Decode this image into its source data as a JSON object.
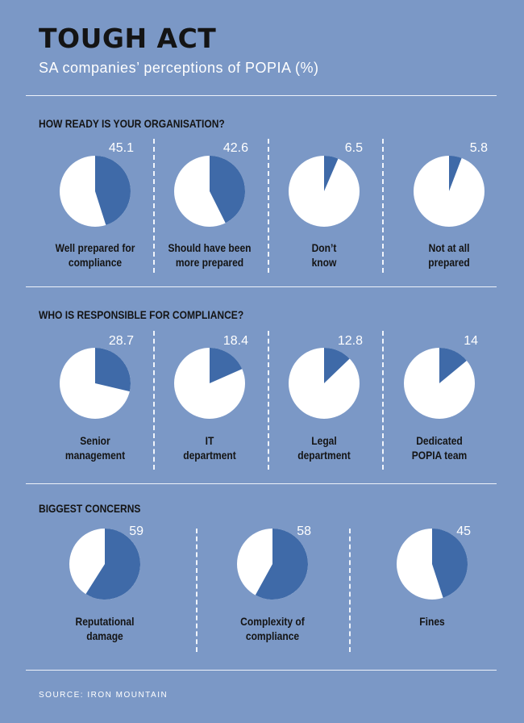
{
  "header": {
    "title": "TOUGH ACT",
    "subtitle": "SA companies’ perceptions of POPIA (%)"
  },
  "colors": {
    "background": "#7b98c6",
    "slice": "#3f6aa8",
    "pie_rest": "#ffffff"
  },
  "chart_data": [
    {
      "type": "pie",
      "title": "HOW READY IS YOUR ORGANISATION?",
      "slices": [
        {
          "label_lines": [
            "Well prepared for",
            "compliance"
          ],
          "value": 45.1,
          "value_text": "45.1"
        },
        {
          "label_lines": [
            "Should have been",
            "more prepared"
          ],
          "value": 42.6,
          "value_text": "42.6"
        },
        {
          "label_lines": [
            "Don’t",
            "know"
          ],
          "value": 6.5,
          "value_text": "6.5"
        },
        {
          "label_lines": [
            "Not at all",
            "prepared"
          ],
          "value": 5.8,
          "value_text": "5.8"
        }
      ]
    },
    {
      "type": "pie",
      "title": "WHO IS RESPONSIBLE FOR COMPLIANCE?",
      "slices": [
        {
          "label_lines": [
            "Senior",
            "management"
          ],
          "value": 28.7,
          "value_text": "28.7"
        },
        {
          "label_lines": [
            "IT",
            "department"
          ],
          "value": 18.4,
          "value_text": "18.4"
        },
        {
          "label_lines": [
            "Legal",
            "department"
          ],
          "value": 12.8,
          "value_text": "12.8"
        },
        {
          "label_lines": [
            "Dedicated",
            "POPIA team"
          ],
          "value": 14,
          "value_text": "14"
        }
      ]
    },
    {
      "type": "pie",
      "title": "BIGGEST CONCERNS",
      "slices": [
        {
          "label_lines": [
            "Reputational",
            "damage"
          ],
          "value": 59,
          "value_text": "59"
        },
        {
          "label_lines": [
            "Complexity of",
            "compliance"
          ],
          "value": 58,
          "value_text": "58"
        },
        {
          "label_lines": [
            "Fines"
          ],
          "value": 45,
          "value_text": "45"
        }
      ]
    }
  ],
  "footer": {
    "source": "SOURCE: IRON MOUNTAIN"
  }
}
